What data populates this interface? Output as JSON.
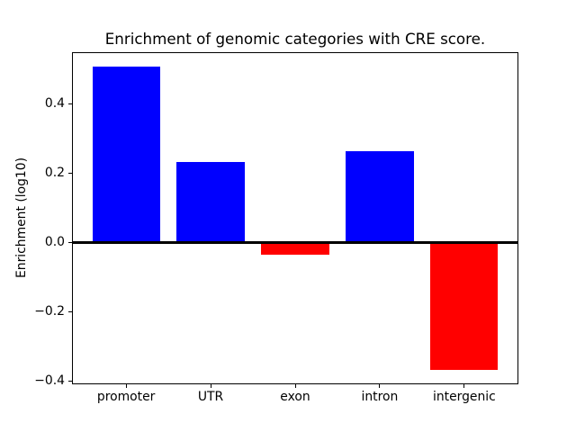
{
  "title": "Enrichment of genomic categories with CRE score.",
  "chart_data": {
    "type": "bar",
    "title": "Enrichment of genomic categories with CRE score.",
    "categories": [
      "promoter",
      "UTR",
      "exon",
      "intron",
      "intergenic"
    ],
    "values": [
      0.507,
      0.233,
      -0.035,
      0.263,
      -0.367
    ],
    "colors": [
      "#0000ff",
      "#0000ff",
      "#ff0000",
      "#0000ff",
      "#ff0000"
    ],
    "positive_color": "#0000ff",
    "negative_color": "#ff0000",
    "xlabel": "",
    "ylabel": "Enrichment (log10)",
    "ylim": [
      -0.41,
      0.55
    ],
    "yticks": [
      -0.4,
      -0.2,
      0.0,
      0.2,
      0.4
    ],
    "ytick_labels": [
      "−0.4",
      "−0.2",
      "0.0",
      "0.2",
      "0.4"
    ],
    "zero_line": true,
    "grid": false,
    "legend": null,
    "background_color": "#ffffff",
    "bar_edge": "none"
  }
}
